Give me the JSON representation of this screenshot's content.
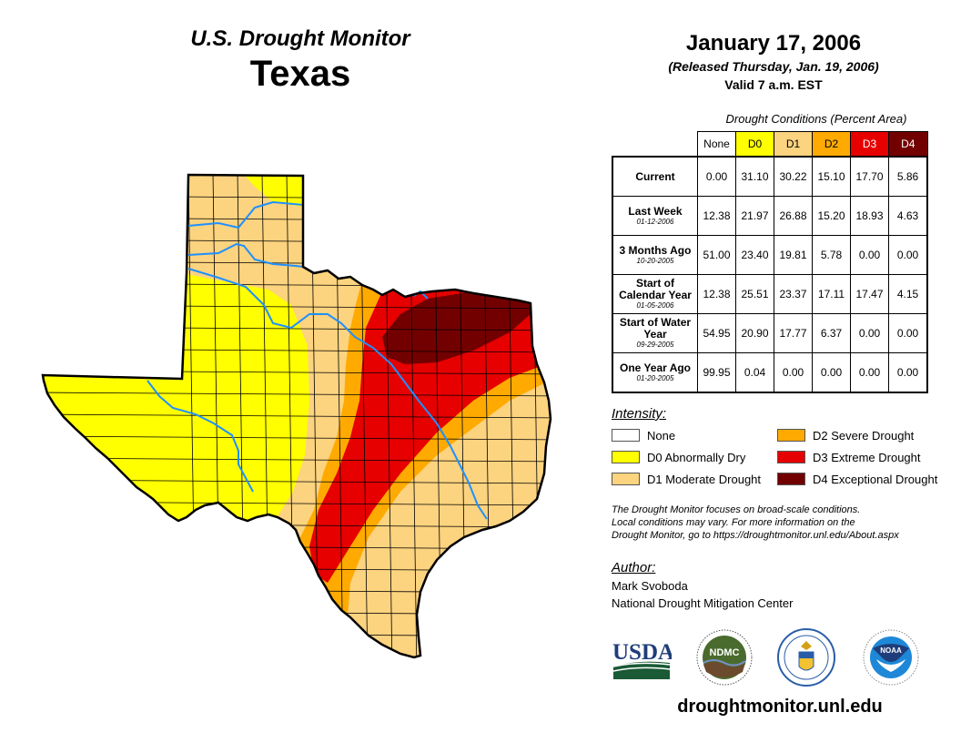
{
  "header": {
    "title": "U.S. Drought Monitor",
    "region": "Texas",
    "date": "January 17, 2006",
    "released": "(Released Thursday, Jan. 19, 2006)",
    "valid": "Valid 7 a.m. EST"
  },
  "table": {
    "caption": "Drought Conditions (Percent Area)",
    "columns": [
      "None",
      "D0",
      "D1",
      "D2",
      "D3",
      "D4"
    ],
    "rows": [
      {
        "label": "Current",
        "sub": "",
        "values": [
          "0.00",
          "31.10",
          "30.22",
          "15.10",
          "17.70",
          "5.86"
        ]
      },
      {
        "label": "Last Week",
        "sub": "01-12-2006",
        "values": [
          "12.38",
          "21.97",
          "26.88",
          "15.20",
          "18.93",
          "4.63"
        ]
      },
      {
        "label": "3 Months Ago",
        "sub": "10-20-2005",
        "values": [
          "51.00",
          "23.40",
          "19.81",
          "5.78",
          "0.00",
          "0.00"
        ]
      },
      {
        "label": "Start of Calendar Year",
        "sub": "01-05-2006",
        "values": [
          "12.38",
          "25.51",
          "23.37",
          "17.11",
          "17.47",
          "4.15"
        ]
      },
      {
        "label": "Start of Water Year",
        "sub": "09-29-2005",
        "values": [
          "54.95",
          "20.90",
          "17.77",
          "6.37",
          "0.00",
          "0.00"
        ]
      },
      {
        "label": "One Year Ago",
        "sub": "01-20-2005",
        "values": [
          "99.95",
          "0.04",
          "0.00",
          "0.00",
          "0.00",
          "0.00"
        ]
      }
    ]
  },
  "legend": {
    "title": "Intensity:",
    "items": [
      {
        "label": "None",
        "color": "#ffffff"
      },
      {
        "label": "D2 Severe Drought",
        "color": "#ffaa00"
      },
      {
        "label": "D0 Abnormally Dry",
        "color": "#ffff00"
      },
      {
        "label": "D3 Extreme Drought",
        "color": "#e60000"
      },
      {
        "label": "D1 Moderate Drought",
        "color": "#fcd37f"
      },
      {
        "label": "D4 Exceptional Drought",
        "color": "#730000"
      }
    ]
  },
  "note": {
    "lines": [
      "The Drought Monitor focuses on broad-scale conditions.",
      "Local conditions may vary. For more information on the",
      "Drought Monitor, go to https://droughtmonitor.unl.edu/About.aspx"
    ]
  },
  "author": {
    "title": "Author:",
    "name": "Mark Svoboda",
    "org": "National Drought Mitigation Center"
  },
  "logos": {
    "usda": "USDA",
    "ndmc": "NDMC",
    "noaa": "NOAA"
  },
  "footer": {
    "url": "droughtmonitor.unl.edu"
  },
  "colors": {
    "none": "#ffffff",
    "d0": "#ffff00",
    "d1": "#fcd37f",
    "d2": "#ffaa00",
    "d3": "#e60000",
    "d4": "#730000",
    "river": "#1e90ff"
  }
}
